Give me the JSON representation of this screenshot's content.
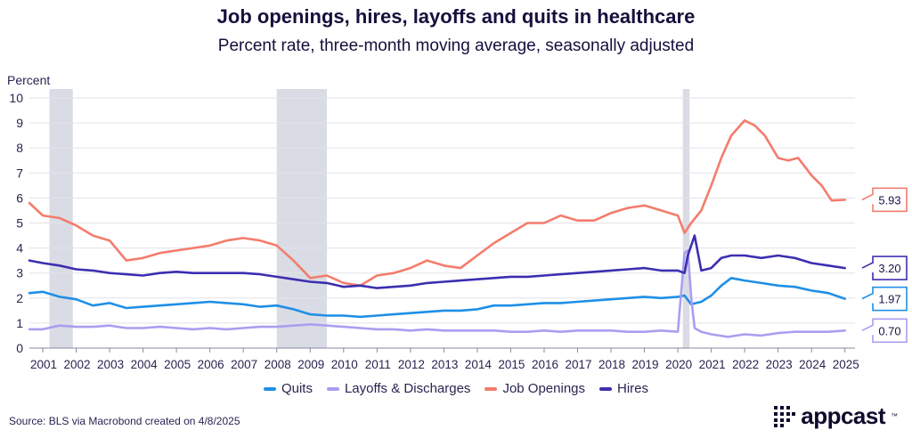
{
  "title": "Job openings, hires, layoffs and quits in healthcare",
  "subtitle": "Percent rate, three-month moving average, seasonally adjusted",
  "source": "Source: BLS via Macrobond created on 4/8/2025",
  "logo": {
    "text": "appcast",
    "trademark": "™",
    "icon": "dot-grid-icon"
  },
  "chart_data": {
    "type": "line",
    "ylabel": "Percent",
    "ylim": [
      0,
      10
    ],
    "yticks": [
      "0",
      "1",
      "2",
      "3",
      "4",
      "5",
      "6",
      "7",
      "8",
      "9",
      "10"
    ],
    "xlim": [
      2000.6,
      2025.3
    ],
    "xticks": [
      "2001",
      "2002",
      "2003",
      "2004",
      "2005",
      "2006",
      "2007",
      "2008",
      "2009",
      "2010",
      "2011",
      "2012",
      "2013",
      "2014",
      "2015",
      "2016",
      "2017",
      "2018",
      "2019",
      "2020",
      "2021",
      "2022",
      "2023",
      "2024",
      "2025"
    ],
    "grid": "horizontal",
    "legend_position": "bottom",
    "recessions": [
      [
        2001.2,
        2001.9
      ],
      [
        2008.0,
        2009.5
      ],
      [
        2020.15,
        2020.35
      ]
    ],
    "series": [
      {
        "name": "Quits",
        "color": "#1f8fe6",
        "end_label": "1.97",
        "x": [
          2000.6,
          2001.0,
          2001.5,
          2002.0,
          2002.5,
          2003.0,
          2003.5,
          2004.0,
          2004.5,
          2005.0,
          2005.5,
          2006.0,
          2006.5,
          2007.0,
          2007.5,
          2008.0,
          2008.5,
          2009.0,
          2009.5,
          2010.0,
          2010.5,
          2011.0,
          2011.5,
          2012.0,
          2012.5,
          2013.0,
          2013.5,
          2014.0,
          2014.5,
          2015.0,
          2015.5,
          2016.0,
          2016.5,
          2017.0,
          2017.5,
          2018.0,
          2018.5,
          2019.0,
          2019.5,
          2020.0,
          2020.2,
          2020.4,
          2020.7,
          2021.0,
          2021.3,
          2021.6,
          2022.0,
          2022.5,
          2023.0,
          2023.5,
          2024.0,
          2024.5,
          2025.0
        ],
        "y": [
          2.2,
          2.25,
          2.05,
          1.95,
          1.7,
          1.8,
          1.6,
          1.65,
          1.7,
          1.75,
          1.8,
          1.85,
          1.8,
          1.75,
          1.65,
          1.7,
          1.55,
          1.35,
          1.3,
          1.3,
          1.25,
          1.3,
          1.35,
          1.4,
          1.45,
          1.5,
          1.5,
          1.55,
          1.7,
          1.7,
          1.75,
          1.8,
          1.8,
          1.85,
          1.9,
          1.95,
          2.0,
          2.05,
          2.0,
          2.05,
          2.1,
          1.75,
          1.85,
          2.1,
          2.5,
          2.8,
          2.7,
          2.6,
          2.5,
          2.45,
          2.3,
          2.2,
          1.97
        ]
      },
      {
        "name": "Layoffs & Discharges",
        "color": "#a99ef0",
        "end_label": "0.70",
        "x": [
          2000.6,
          2001.0,
          2001.5,
          2002.0,
          2002.5,
          2003.0,
          2003.5,
          2004.0,
          2004.5,
          2005.0,
          2005.5,
          2006.0,
          2006.5,
          2007.0,
          2007.5,
          2008.0,
          2008.5,
          2009.0,
          2009.5,
          2010.0,
          2010.5,
          2011.0,
          2011.5,
          2012.0,
          2012.5,
          2013.0,
          2013.5,
          2014.0,
          2014.5,
          2015.0,
          2015.5,
          2016.0,
          2016.5,
          2017.0,
          2017.5,
          2018.0,
          2018.5,
          2019.0,
          2019.5,
          2020.0,
          2020.1,
          2020.2,
          2020.3,
          2020.4,
          2020.5,
          2020.7,
          2021.0,
          2021.5,
          2022.0,
          2022.5,
          2023.0,
          2023.5,
          2024.0,
          2024.5,
          2025.0
        ],
        "y": [
          0.75,
          0.75,
          0.9,
          0.85,
          0.85,
          0.9,
          0.8,
          0.8,
          0.85,
          0.8,
          0.75,
          0.8,
          0.75,
          0.8,
          0.85,
          0.85,
          0.9,
          0.95,
          0.9,
          0.85,
          0.8,
          0.75,
          0.75,
          0.7,
          0.75,
          0.7,
          0.7,
          0.7,
          0.7,
          0.65,
          0.65,
          0.7,
          0.65,
          0.7,
          0.7,
          0.7,
          0.65,
          0.65,
          0.7,
          0.65,
          2.2,
          3.8,
          3.9,
          2.0,
          0.8,
          0.65,
          0.55,
          0.45,
          0.55,
          0.5,
          0.6,
          0.65,
          0.65,
          0.65,
          0.7
        ]
      },
      {
        "name": "Job Openings",
        "color": "#f47c6c",
        "end_label": "5.93",
        "x": [
          2000.6,
          2001.0,
          2001.5,
          2002.0,
          2002.5,
          2003.0,
          2003.5,
          2004.0,
          2004.5,
          2005.0,
          2005.5,
          2006.0,
          2006.5,
          2007.0,
          2007.5,
          2008.0,
          2008.5,
          2009.0,
          2009.5,
          2010.0,
          2010.5,
          2011.0,
          2011.5,
          2012.0,
          2012.5,
          2013.0,
          2013.5,
          2014.0,
          2014.5,
          2015.0,
          2015.5,
          2016.0,
          2016.5,
          2017.0,
          2017.5,
          2018.0,
          2018.5,
          2019.0,
          2019.5,
          2020.0,
          2020.2,
          2020.4,
          2020.7,
          2021.0,
          2021.3,
          2021.6,
          2022.0,
          2022.3,
          2022.6,
          2023.0,
          2023.3,
          2023.6,
          2024.0,
          2024.3,
          2024.6,
          2025.0
        ],
        "y": [
          5.8,
          5.3,
          5.2,
          4.9,
          4.5,
          4.3,
          3.5,
          3.6,
          3.8,
          3.9,
          4.0,
          4.1,
          4.3,
          4.4,
          4.3,
          4.1,
          3.5,
          2.8,
          2.9,
          2.6,
          2.5,
          2.9,
          3.0,
          3.2,
          3.5,
          3.3,
          3.2,
          3.7,
          4.2,
          4.6,
          5.0,
          5.0,
          5.3,
          5.1,
          5.1,
          5.4,
          5.6,
          5.7,
          5.5,
          5.3,
          4.6,
          5.0,
          5.5,
          6.5,
          7.6,
          8.5,
          9.1,
          8.9,
          8.5,
          7.6,
          7.5,
          7.6,
          6.9,
          6.5,
          5.9,
          5.93
        ]
      },
      {
        "name": "Hires",
        "color": "#3c2fb0",
        "end_label": "3.20",
        "x": [
          2000.6,
          2001.0,
          2001.5,
          2002.0,
          2002.5,
          2003.0,
          2003.5,
          2004.0,
          2004.5,
          2005.0,
          2005.5,
          2006.0,
          2006.5,
          2007.0,
          2007.5,
          2008.0,
          2008.5,
          2009.0,
          2009.5,
          2010.0,
          2010.5,
          2011.0,
          2011.5,
          2012.0,
          2012.5,
          2013.0,
          2013.5,
          2014.0,
          2014.5,
          2015.0,
          2015.5,
          2016.0,
          2016.5,
          2017.0,
          2017.5,
          2018.0,
          2018.5,
          2019.0,
          2019.5,
          2020.0,
          2020.2,
          2020.3,
          2020.5,
          2020.7,
          2021.0,
          2021.3,
          2021.6,
          2022.0,
          2022.5,
          2023.0,
          2023.5,
          2024.0,
          2024.5,
          2025.0
        ],
        "y": [
          3.5,
          3.4,
          3.3,
          3.15,
          3.1,
          3.0,
          2.95,
          2.9,
          3.0,
          3.05,
          3.0,
          3.0,
          3.0,
          3.0,
          2.95,
          2.85,
          2.75,
          2.65,
          2.6,
          2.45,
          2.5,
          2.4,
          2.45,
          2.5,
          2.6,
          2.65,
          2.7,
          2.75,
          2.8,
          2.85,
          2.85,
          2.9,
          2.95,
          3.0,
          3.05,
          3.1,
          3.15,
          3.2,
          3.1,
          3.1,
          3.0,
          3.7,
          4.5,
          3.1,
          3.2,
          3.6,
          3.7,
          3.7,
          3.6,
          3.7,
          3.6,
          3.4,
          3.3,
          3.2
        ]
      }
    ]
  }
}
